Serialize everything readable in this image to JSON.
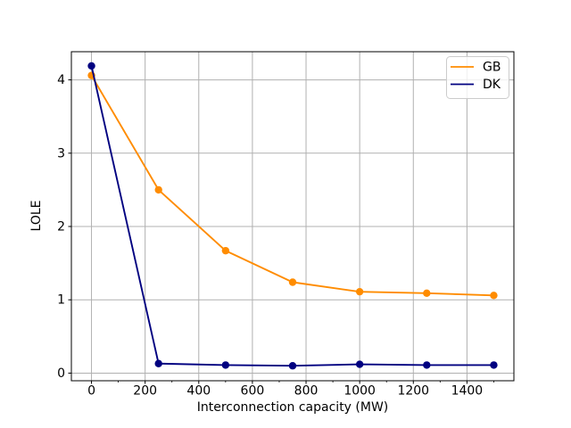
{
  "figure": {
    "background": "#ffffff"
  },
  "chart_data": {
    "type": "line",
    "title": "",
    "xlabel": "Interconnection capacity (MW)",
    "ylabel": "LOLE",
    "x": [
      0,
      250,
      500,
      750,
      1000,
      1250,
      1500
    ],
    "series": [
      {
        "name": "GB",
        "color": "#ff8c00",
        "values": [
          4.06,
          2.5,
          1.67,
          1.24,
          1.11,
          1.09,
          1.06
        ]
      },
      {
        "name": "DK",
        "color": "#000080",
        "values": [
          4.19,
          0.13,
          0.11,
          0.1,
          0.12,
          0.11,
          0.11
        ]
      }
    ],
    "xticks": [
      0,
      200,
      400,
      600,
      800,
      1000,
      1200,
      1400
    ],
    "xticks_minor": [
      100,
      300,
      500,
      700,
      900,
      1100,
      1300,
      1500
    ],
    "yticks": [
      0,
      1,
      2,
      3,
      4
    ],
    "xlim": [
      -75,
      1575
    ],
    "ylim": [
      -0.104,
      4.384
    ],
    "grid": true,
    "legend": {
      "position": "upper right",
      "entries": [
        "GB",
        "DK"
      ]
    },
    "style": {
      "grid_color": "#b0b0b0",
      "spine_color": "#000000",
      "text_color": "#000000",
      "legend_border_color": "#cccccc",
      "legend_background": "#ffffff",
      "marker": "circle"
    }
  }
}
